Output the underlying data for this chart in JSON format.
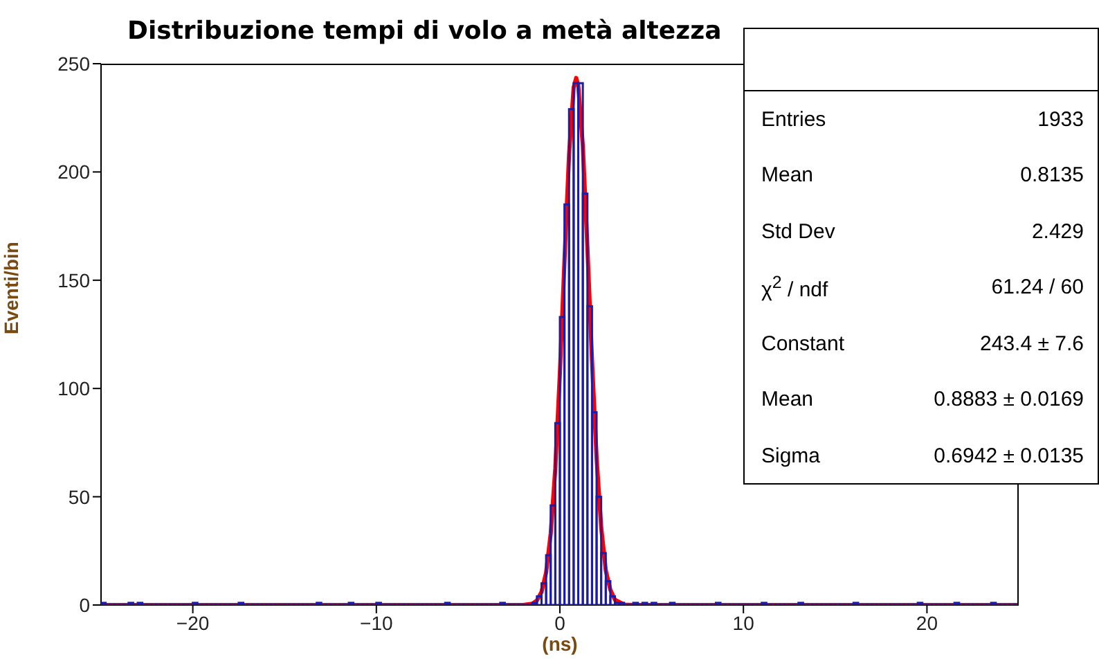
{
  "chart_data": {
    "type": "histogram",
    "title": "Distribuzione tempi di volo a metà altezza",
    "xlabel": "(ns)",
    "ylabel": "Eventi/bin",
    "bins": [
      -25,
      -24.75,
      -24.5,
      -24.25,
      -24,
      -23.75,
      -23.5,
      -23.25,
      -23,
      -22.75,
      -22.5,
      -22.25,
      -22,
      -21.75,
      -21.5,
      -21.25,
      -21,
      -20.75,
      -20.5,
      -20.25,
      -20,
      -19.75,
      -19.5,
      -19.25,
      -19,
      -18.75,
      -18.5,
      -18.25,
      -18,
      -17.75,
      -17.5,
      -17.25,
      -17,
      -16.75,
      -16.5,
      -16.25,
      -16,
      -15.75,
      -15.5,
      -15.25,
      -15,
      -14.75,
      -14.5,
      -14.25,
      -14,
      -13.75,
      -13.5,
      -13.25,
      -13,
      -12.75,
      -12.5,
      -12.25,
      -12,
      -11.75,
      -11.5,
      -11.25,
      -11,
      -10.75,
      -10.5,
      -10.25,
      -10,
      -9.75,
      -9.5,
      -9.25,
      -9,
      -8.75,
      -8.5,
      -8.25,
      -8,
      -7.75,
      -7.5,
      -7.25,
      -7,
      -6.75,
      -6.5,
      -6.25,
      -6,
      -5.75,
      -5.5,
      -5.25,
      -5,
      -4.75,
      -4.5,
      -4.25,
      -4,
      -3.75,
      -3.5,
      -3.25,
      -3,
      -2.75,
      -2.5,
      -2.25,
      -2,
      -1.75,
      -1.5,
      -1.25,
      -1,
      -0.75,
      -0.5,
      -0.25,
      0,
      0.25,
      0.5,
      0.75,
      1,
      1.25,
      1.5,
      1.75,
      2,
      2.25,
      2.5,
      2.75,
      3,
      3.25,
      3.5,
      3.75,
      4,
      4.25,
      4.5,
      4.75,
      5,
      5.25,
      5.5,
      5.75,
      6,
      6.25,
      6.5,
      6.75,
      7,
      7.25,
      7.5,
      7.75,
      8,
      8.25,
      8.5,
      8.75,
      9,
      9.25,
      9.5,
      9.75,
      10,
      10.25,
      10.5,
      10.75,
      11,
      11.25,
      11.5,
      11.75,
      12,
      12.25,
      12.5,
      12.75,
      13,
      13.25,
      13.5,
      13.75,
      14,
      14.25,
      14.5,
      14.75,
      15,
      15.25,
      15.5,
      15.75,
      16,
      16.25,
      16.5,
      16.75,
      17,
      17.25,
      17.5,
      17.75,
      18,
      18.25,
      18.5,
      18.75,
      19,
      19.25,
      19.5,
      19.75,
      20,
      20.25,
      20.5,
      20.75,
      21,
      21.25,
      21.5,
      21.75,
      22,
      22.25,
      22.5,
      22.75,
      23,
      23.25,
      23.5,
      23.75,
      24,
      24.25,
      24.5,
      24.75,
      25
    ],
    "series": [
      {
        "type": "histogram",
        "color": "#1c1ca8",
        "values": [
          1,
          0,
          0,
          0,
          0,
          0,
          1,
          0,
          1,
          0,
          0,
          0,
          0,
          0,
          0,
          0,
          0,
          0,
          0,
          0,
          1,
          0,
          0,
          0,
          0,
          0,
          0,
          0,
          0,
          0,
          1,
          0,
          0,
          0,
          0,
          0,
          0,
          0,
          0,
          0,
          0,
          0,
          0,
          0,
          0,
          0,
          0,
          1,
          0,
          0,
          0,
          0,
          0,
          0,
          1,
          0,
          0,
          0,
          0,
          0,
          1,
          0,
          0,
          0,
          0,
          0,
          0,
          0,
          0,
          0,
          0,
          0,
          0,
          0,
          0,
          1,
          0,
          0,
          0,
          0,
          0,
          0,
          0,
          0,
          0,
          0,
          0,
          1,
          0,
          0,
          0,
          0,
          0,
          0,
          1,
          4,
          10,
          23,
          46,
          84,
          133,
          185,
          229,
          241,
          241,
          190,
          138,
          89,
          50,
          24,
          11,
          4,
          1,
          1,
          0,
          0,
          1,
          0,
          1,
          0,
          1,
          0,
          0,
          0,
          1,
          0,
          0,
          0,
          0,
          0,
          0,
          0,
          0,
          0,
          1,
          0,
          0,
          0,
          0,
          0,
          0,
          0,
          0,
          0,
          1,
          0,
          0,
          0,
          0,
          0,
          0,
          0,
          1,
          0,
          0,
          0,
          0,
          0,
          0,
          0,
          0,
          0,
          0,
          0,
          1,
          0,
          0,
          0,
          0,
          0,
          0,
          0,
          0,
          0,
          0,
          0,
          0,
          0,
          1,
          0,
          0,
          0,
          0,
          0,
          0,
          0,
          1,
          0,
          0,
          0,
          0,
          0,
          0,
          0,
          1,
          0,
          0,
          0,
          0,
          0
        ]
      },
      {
        "type": "line",
        "color": "#ff0000",
        "x": [
          -25,
          -2,
          -1.5,
          -1.25,
          -1,
          -0.75,
          -0.5,
          -0.25,
          0,
          0.25,
          0.5,
          0.75,
          0.888,
          1,
          1.25,
          1.5,
          1.75,
          2,
          2.25,
          2.5,
          2.75,
          3,
          3.5,
          4,
          25
        ],
        "values": [
          0,
          0,
          0.6,
          2.1,
          6,
          15,
          33,
          63,
          107,
          159,
          208,
          239,
          243.4,
          240,
          212,
          165,
          113,
          68,
          36,
          16,
          7,
          2.4,
          0.2,
          0,
          0
        ]
      }
    ],
    "xlim": [
      -25,
      25
    ],
    "xticks": [
      {
        "value": -20,
        "label": "−20"
      },
      {
        "value": -10,
        "label": "−10"
      },
      0,
      10,
      20
    ],
    "ylim": [
      0,
      250
    ],
    "yticks": [
      0,
      50,
      100,
      150,
      200,
      250
    ],
    "annotations": [
      "Entries",
      "1933",
      "Mean",
      "0.8135",
      "Std Dev",
      "2.429",
      "χ$^{2}$ / ndf",
      "61.24 / 60",
      "Constant",
      "243.4 ± 7.6",
      "Mean",
      "0.8883 ± 0.0169",
      "Sigma",
      "0.6942 ± 0.0135"
    ]
  }
}
